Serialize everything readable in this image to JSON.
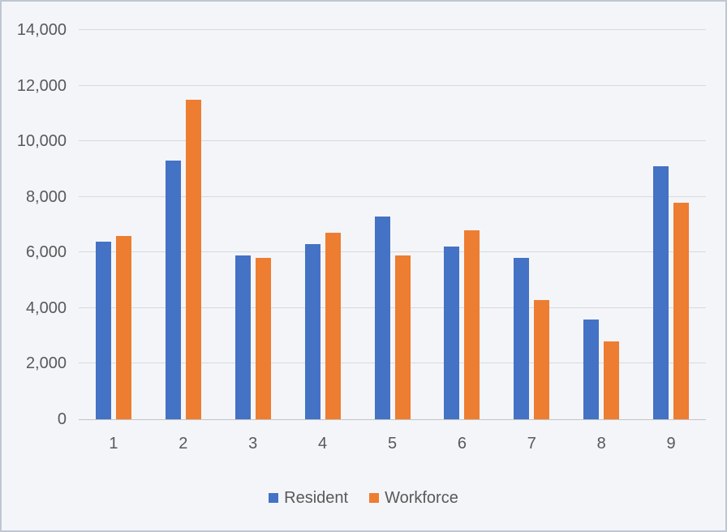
{
  "legend": {
    "items": [
      {
        "label": "Resident",
        "color": "#4472C4"
      },
      {
        "label": "Workforce",
        "color": "#ED7D31"
      }
    ]
  },
  "axes": {
    "y_tick_labels": [
      "0",
      "2,000",
      "4,000",
      "6,000",
      "8,000",
      "10,000",
      "12,000",
      "14,000"
    ],
    "x_tick_labels": [
      "1",
      "2",
      "3",
      "4",
      "5",
      "6",
      "7",
      "8",
      "9"
    ]
  },
  "chart_data": {
    "type": "bar",
    "categories": [
      "1",
      "2",
      "3",
      "4",
      "5",
      "6",
      "7",
      "8",
      "9"
    ],
    "series": [
      {
        "name": "Resident",
        "color": "#4472C4",
        "values": [
          6400,
          9300,
          5900,
          6300,
          7300,
          6200,
          5800,
          3600,
          9100
        ]
      },
      {
        "name": "Workforce",
        "color": "#ED7D31",
        "values": [
          6600,
          11500,
          5800,
          6700,
          5900,
          6800,
          4300,
          2800,
          7800
        ]
      }
    ],
    "title": "",
    "xlabel": "",
    "ylabel": "",
    "ylim": [
      0,
      14000
    ],
    "ytick_interval": 2000,
    "grid": true,
    "legend_position": "bottom",
    "gridline_color": "#d9d9d9",
    "axis_line_color": "#c4c4c4",
    "text_color": "#595959",
    "background_color": "#f4f5f9",
    "border_color": "#bfc6d4"
  }
}
